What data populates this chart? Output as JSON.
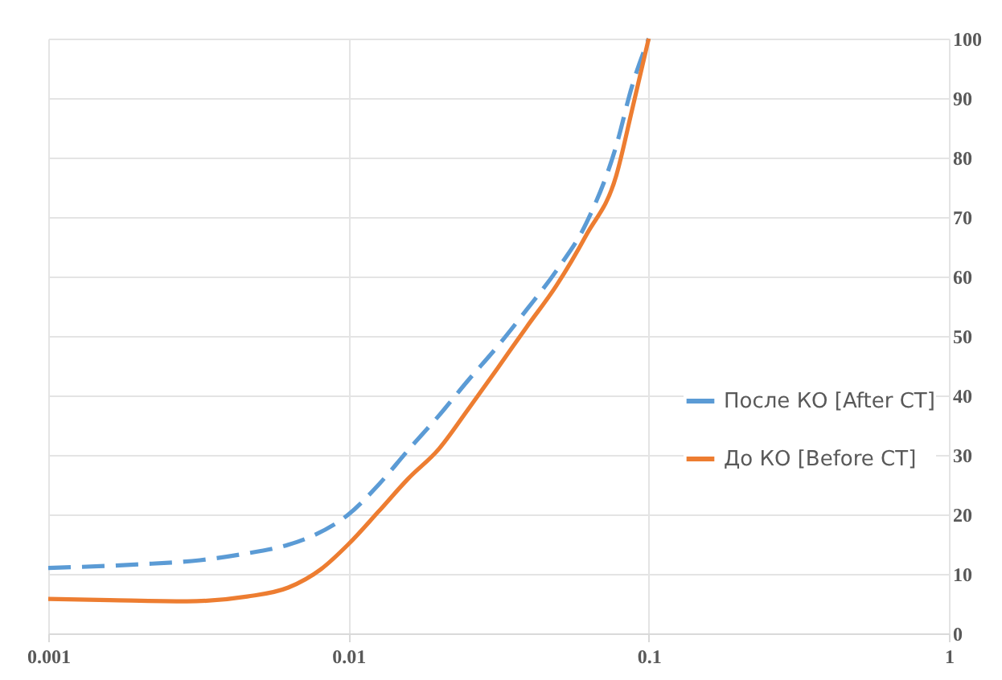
{
  "chart_data": {
    "type": "line",
    "x": [
      0.001,
      0.002,
      0.0032,
      0.0044,
      0.0063,
      0.0076,
      0.01,
      0.0126,
      0.0158,
      0.02,
      0.0249,
      0.0313,
      0.0392,
      0.0493,
      0.062,
      0.078,
      0.088,
      0.1
    ],
    "series": [
      {
        "name": "После КО [After CT]",
        "color": "#5b9bd5",
        "line_style": "dashed",
        "values": [
          11,
          11.6,
          12.3,
          13.3,
          14.9,
          16.4,
          20,
          25,
          30.8,
          36.6,
          42.4,
          48.2,
          54.4,
          61,
          69,
          82,
          92,
          100
        ]
      },
      {
        "name": "До КО [Before CT]",
        "color": "#ed7d31",
        "line_style": "solid",
        "x": [
          0.001,
          0.0016,
          0.0029,
          0.0046,
          0.0063,
          0.0081,
          0.01,
          0.0126,
          0.0158,
          0.02,
          0.0249,
          0.0313,
          0.0392,
          0.0493,
          0.062,
          0.078,
          0.088,
          0.1
        ],
        "values": [
          5.8,
          5.6,
          5.4,
          6.2,
          7.7,
          10.8,
          15,
          20.5,
          26,
          31,
          37.5,
          44.5,
          51.5,
          58.5,
          67,
          77,
          88,
          100
        ]
      }
    ],
    "log": "x",
    "xlim": [
      0.001,
      1
    ],
    "xticks": [
      0.001,
      0.01,
      0.1,
      1
    ],
    "ylim": [
      0,
      100
    ],
    "yticks": [
      0,
      10,
      20,
      30,
      40,
      50,
      60,
      70,
      80,
      90,
      100
    ],
    "grid": true,
    "legend": "right",
    "marker": "none"
  }
}
